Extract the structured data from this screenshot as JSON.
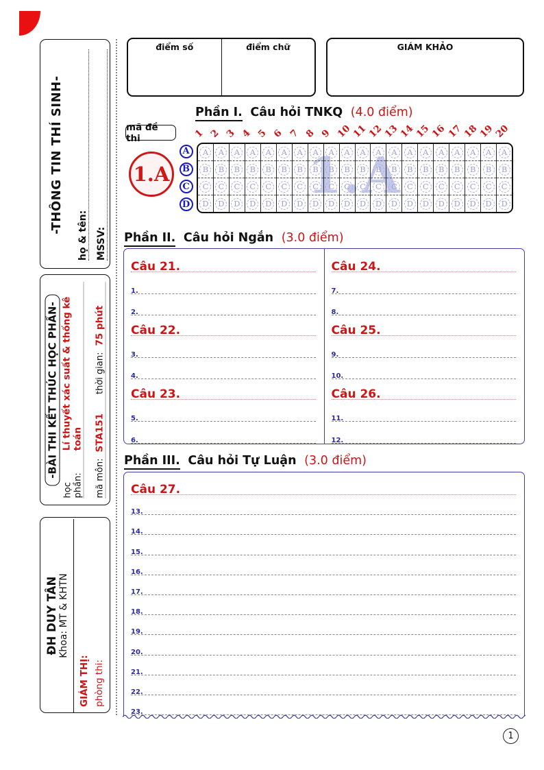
{
  "header": {
    "score_number_label": "điểm số",
    "score_text_label": "điểm chữ",
    "examiner_label": "GIÁM KHẢO"
  },
  "sidebar": {
    "student_info": {
      "title": "-THÔNG TIN THÍ SINH-",
      "fields": [
        {
          "label": "họ & tên:",
          "value": ""
        },
        {
          "label": "MSSV:",
          "value": ""
        }
      ]
    },
    "exam_info": {
      "title": "-BÀI THI KẾT THÚC HỌC PHẦN-",
      "course_label": "học phần:",
      "course_value": "Lí thuyết xác suất & thống kê toán",
      "code_label": "mã môn:",
      "code_value": "STA151",
      "duration_label": "thời gian:",
      "duration_value": "75 phút"
    },
    "university": {
      "name": "ĐH DUY TÂN",
      "faculty": "Khoa: MT & KHTN",
      "proctor_label": "GIÁM THỊ:",
      "room_label": "phòng thi:"
    }
  },
  "part1": {
    "heading_prefix": "Phần I.",
    "heading": "Câu hỏi TNKQ",
    "points": "(4.0 điểm)",
    "exam_code_box_label": "mã đề thi",
    "exam_code": "1.A",
    "watermark": "1.A",
    "question_numbers": [
      "1",
      "2",
      "3",
      "4",
      "5",
      "6",
      "7",
      "8",
      "9",
      "10",
      "11",
      "12",
      "13",
      "14",
      "15",
      "16",
      "17",
      "18",
      "19",
      "20"
    ],
    "choice_labels": [
      "A",
      "B",
      "C",
      "D"
    ]
  },
  "part2": {
    "heading_prefix": "Phần II.",
    "heading": "Câu hỏi Ngắn",
    "points": "(3.0 điểm)",
    "columns": [
      {
        "questions": [
          {
            "label": "Câu 21.",
            "lines": [
              "1.",
              "2."
            ]
          },
          {
            "label": "Câu 22.",
            "lines": [
              "3.",
              "4."
            ]
          },
          {
            "label": "Câu 23.",
            "lines": [
              "5.",
              "6."
            ]
          }
        ]
      },
      {
        "questions": [
          {
            "label": "Câu 24.",
            "lines": [
              "7.",
              "8."
            ]
          },
          {
            "label": "Câu 25.",
            "lines": [
              "9.",
              "10."
            ]
          },
          {
            "label": "Câu 26.",
            "lines": [
              "11.",
              "12."
            ]
          }
        ]
      }
    ]
  },
  "part3": {
    "heading_prefix": "Phần III.",
    "heading": "Câu hỏi Tự Luận",
    "points": "(3.0 điểm)",
    "question_label": "Câu 27.",
    "lines": [
      "13.",
      "14.",
      "15.",
      "16.",
      "17.",
      "18.",
      "19.",
      "20.",
      "21.",
      "22.",
      "23."
    ]
  },
  "footer": {
    "page_number": "1"
  },
  "colors": {
    "accent_red": "#cc1515",
    "logo_red": "#e81010",
    "form_blue": "#3f3fae",
    "bubble_lavender": "#a0a0d6"
  }
}
